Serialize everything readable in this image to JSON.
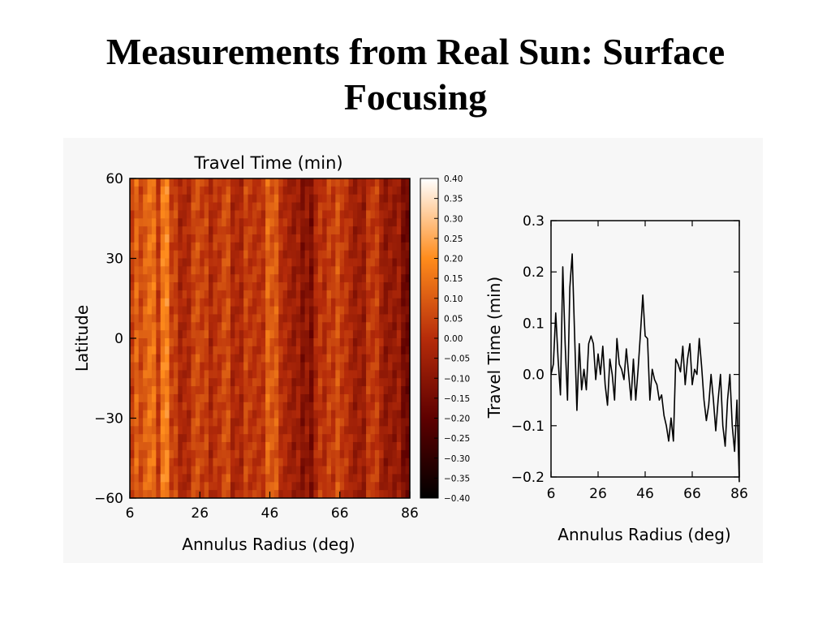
{
  "slide": {
    "title_line1": "Measurements from Real Sun: Surface",
    "title_line2": "Focusing"
  },
  "chart_data": [
    {
      "type": "heatmap",
      "title": "Travel Time (min)",
      "xlabel": "Annulus Radius (deg)",
      "ylabel": "Latitude",
      "xlim": [
        6,
        86
      ],
      "ylim": [
        -60,
        60
      ],
      "xticks": [
        "6",
        "26",
        "46",
        "66",
        "86"
      ],
      "yticks": [
        "60",
        "30",
        "0",
        "−30",
        "−60"
      ],
      "colorbar": {
        "min": -0.4,
        "max": 0.4,
        "ticks": [
          "0.40",
          "0.35",
          "0.30",
          "0.25",
          "0.20",
          "0.15",
          "0.10",
          "0.05",
          "0.00",
          "−0.05",
          "−0.10",
          "−0.15",
          "−0.20",
          "−0.25",
          "−0.30",
          "−0.35",
          "−0.40"
        ],
        "colors": [
          "#000000",
          "#5e0000",
          "#b62c0a",
          "#ff8c1c",
          "#ffffff"
        ]
      },
      "column_profile": {
        "x": [
          6,
          8,
          10,
          12,
          14,
          16,
          18,
          20,
          22,
          24,
          26,
          28,
          30,
          32,
          34,
          36,
          38,
          40,
          42,
          44,
          46,
          48,
          50,
          52,
          54,
          56,
          58,
          60,
          62,
          64,
          66,
          68,
          70,
          72,
          74,
          76,
          78,
          80,
          82,
          84,
          86
        ],
        "values": [
          0.0,
          0.12,
          0.05,
          0.2,
          0.02,
          0.23,
          0.05,
          0.0,
          -0.05,
          0.05,
          0.07,
          0.02,
          -0.02,
          0.05,
          0.07,
          -0.05,
          0.0,
          0.05,
          0.0,
          0.02,
          0.14,
          0.07,
          -0.02,
          -0.05,
          -0.07,
          -0.1,
          -0.12,
          0.03,
          0.0,
          0.05,
          0.06,
          0.0,
          -0.05,
          -0.08,
          0.0,
          0.06,
          -0.05,
          -0.1,
          -0.05,
          -0.12,
          -0.2
        ]
      }
    },
    {
      "type": "line",
      "title": "",
      "xlabel": "Annulus Radius (deg)",
      "ylabel": "Travel Time (min)",
      "xlim": [
        6,
        86
      ],
      "ylim": [
        -0.2,
        0.3
      ],
      "xticks": [
        "6",
        "26",
        "46",
        "66",
        "86"
      ],
      "yticks": [
        "0.3",
        "0.2",
        "0.1",
        "0.0",
        "−0.1",
        "−0.2"
      ],
      "series": [
        {
          "color": "#000000",
          "x": [
            6,
            7,
            8,
            9,
            10,
            11,
            12,
            13,
            14,
            15,
            16,
            17,
            18,
            19,
            20,
            21,
            22,
            23,
            24,
            25,
            26,
            27,
            28,
            29,
            30,
            31,
            32,
            33,
            34,
            35,
            36,
            37,
            38,
            39,
            40,
            41,
            42,
            43,
            44,
            45,
            46,
            47,
            48,
            49,
            50,
            51,
            52,
            53,
            54,
            55,
            56,
            57,
            58,
            59,
            60,
            61,
            62,
            63,
            64,
            65,
            66,
            67,
            68,
            69,
            70,
            71,
            72,
            73,
            74,
            75,
            76,
            77,
            78,
            79,
            80,
            81,
            82,
            83,
            84,
            85,
            86
          ],
          "y": [
            0.0,
            0.02,
            0.12,
            0.03,
            -0.04,
            0.21,
            0.06,
            -0.05,
            0.17,
            0.235,
            0.08,
            -0.07,
            0.06,
            -0.03,
            0.01,
            -0.03,
            0.06,
            0.075,
            0.06,
            -0.01,
            0.04,
            0.0,
            0.055,
            -0.02,
            -0.06,
            0.03,
            0.0,
            -0.05,
            0.07,
            0.02,
            0.01,
            -0.01,
            0.05,
            0.0,
            -0.05,
            0.03,
            -0.05,
            0.01,
            0.08,
            0.155,
            0.075,
            0.07,
            -0.05,
            0.01,
            -0.01,
            -0.02,
            -0.05,
            -0.04,
            -0.08,
            -0.1,
            -0.13,
            -0.085,
            -0.13,
            0.03,
            0.02,
            0.005,
            0.055,
            -0.02,
            0.03,
            0.06,
            -0.02,
            0.01,
            0.0,
            0.07,
            0.015,
            -0.05,
            -0.09,
            -0.06,
            0.0,
            -0.05,
            -0.11,
            -0.05,
            0.0,
            -0.1,
            -0.14,
            -0.05,
            0.0,
            -0.1,
            -0.15,
            -0.05,
            -0.21
          ]
        }
      ]
    }
  ]
}
